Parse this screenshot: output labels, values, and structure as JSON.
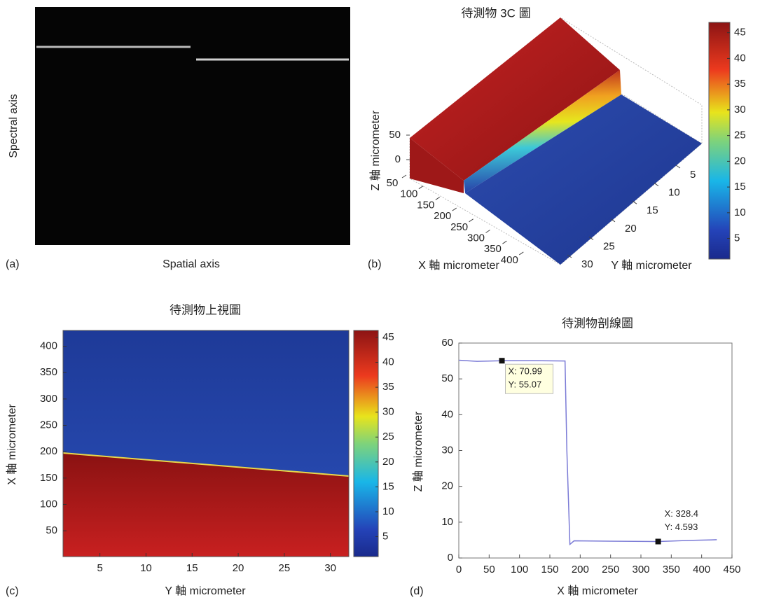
{
  "chart_data": [
    {
      "type": "image",
      "panel_label": "(a)",
      "xlabel": "Spatial axis",
      "ylabel": "Spectral axis"
    },
    {
      "type": "surface3d",
      "panel_label": "(b)",
      "title": "待測物 3C 圖",
      "xlabel": "X 軸 micrometer",
      "ylabel": "Y 軸 micrometer",
      "zlabel": "Z 軸 micrometer",
      "xticks": [
        50,
        100,
        150,
        200,
        250,
        300,
        350,
        400
      ],
      "yticks": [
        5,
        10,
        15,
        20,
        25,
        30
      ],
      "zticks": [
        0,
        50
      ],
      "clim": [
        1,
        47
      ],
      "colorbar_ticks": [
        5,
        10,
        15,
        20,
        25,
        30,
        35,
        40,
        45
      ]
    },
    {
      "type": "heatmap",
      "panel_label": "(c)",
      "title": "待測物上視圖",
      "xlabel": "Y 軸 micrometer",
      "ylabel": "X 軸 micrometer",
      "xlim": [
        1,
        32
      ],
      "ylim": [
        1,
        430
      ],
      "xticks": [
        5,
        10,
        15,
        20,
        25,
        30
      ],
      "yticks": [
        50,
        100,
        150,
        200,
        250,
        300,
        350,
        400
      ],
      "clim": [
        1,
        46.4
      ],
      "colorbar_ticks": [
        5,
        10,
        15,
        20,
        25,
        30,
        35,
        40,
        45
      ]
    },
    {
      "type": "line",
      "panel_label": "(d)",
      "title": "待測物剖線圖",
      "xlabel": "X 軸 micrometer",
      "ylabel": "Z 軸 micrometer",
      "xlim": [
        0,
        450
      ],
      "ylim": [
        0,
        60
      ],
      "xticks": [
        0,
        50,
        100,
        150,
        200,
        250,
        300,
        350,
        400,
        450
      ],
      "yticks": [
        0,
        10,
        20,
        30,
        40,
        50,
        60
      ],
      "color": "#7b7bd6",
      "x": [
        0,
        30,
        70.99,
        120,
        175,
        178,
        183,
        190,
        250,
        328.4,
        380,
        425
      ],
      "values": [
        55.2,
        54.9,
        55.07,
        55.1,
        55,
        30,
        3.8,
        4.8,
        4.7,
        4.593,
        4.9,
        5.1
      ],
      "datatips": [
        {
          "x": 70.99,
          "y": 55.07,
          "label_x": "X: 70.99",
          "label_y": "Y: 55.07"
        },
        {
          "x": 328.4,
          "y": 4.593,
          "label_x": "X: 328.4",
          "label_y": "Y: 4.593"
        }
      ]
    }
  ]
}
